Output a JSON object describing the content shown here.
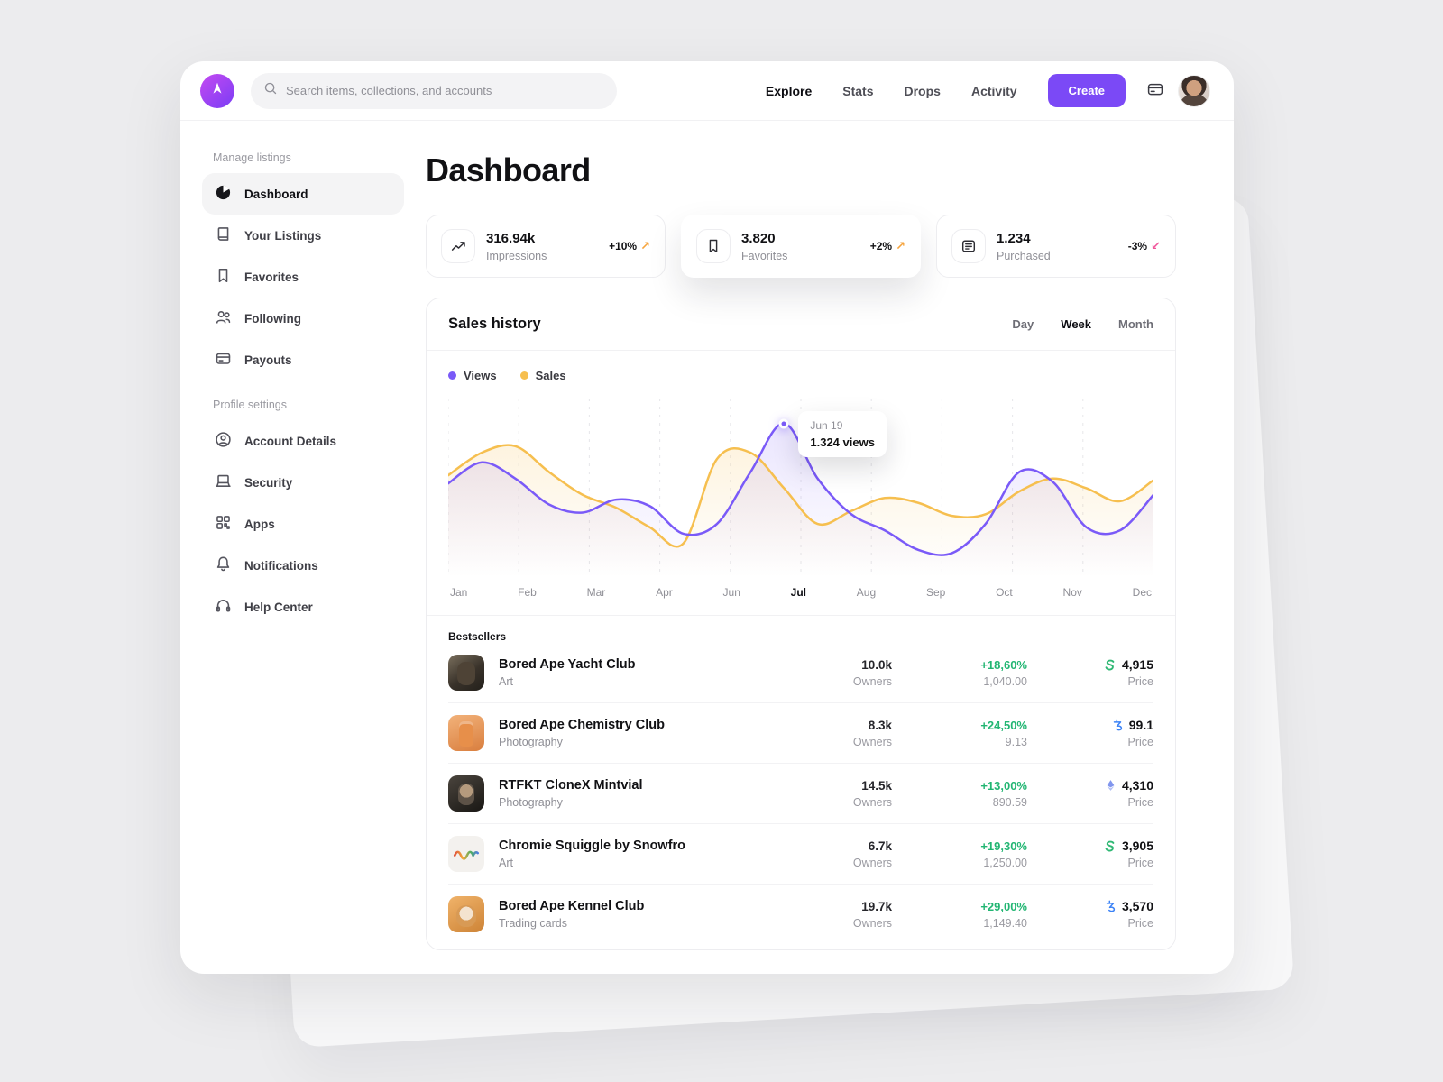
{
  "colors": {
    "accent": "#7b49f6",
    "views_line": "#7a5af8",
    "sales_line": "#f6bf4f",
    "positive": "#23b673",
    "negative_arrow": "#f0569b",
    "up_arrow": "#f6a43d"
  },
  "topbar": {
    "search_placeholder": "Search items, collections, and accounts",
    "nav": [
      {
        "label": "Explore"
      },
      {
        "label": "Stats"
      },
      {
        "label": "Drops"
      },
      {
        "label": "Activity"
      }
    ],
    "create_label": "Create"
  },
  "sidebar": {
    "sections": [
      {
        "label": "Manage listings",
        "items": [
          {
            "label": "Dashboard"
          },
          {
            "label": "Your Listings"
          },
          {
            "label": "Favorites"
          },
          {
            "label": "Following"
          },
          {
            "label": "Payouts"
          }
        ]
      },
      {
        "label": "Profile settings",
        "items": [
          {
            "label": "Account Details"
          },
          {
            "label": "Security"
          },
          {
            "label": "Apps"
          },
          {
            "label": "Notifications"
          },
          {
            "label": "Help Center"
          }
        ]
      }
    ]
  },
  "page_title": "Dashboard",
  "stats": [
    {
      "value": "316.94k",
      "label": "Impressions",
      "change": "+10%",
      "direction": "up"
    },
    {
      "value": "3.820",
      "label": "Favorites",
      "change": "+2%",
      "direction": "up"
    },
    {
      "value": "1.234",
      "label": "Purchased",
      "change": "-3%",
      "direction": "down"
    }
  ],
  "sales_panel": {
    "title": "Sales history",
    "tabs": [
      {
        "label": "Day"
      },
      {
        "label": "Week"
      },
      {
        "label": "Month"
      }
    ],
    "active_tab": "Week",
    "legend": [
      {
        "label": "Views"
      },
      {
        "label": "Sales"
      }
    ],
    "tooltip": {
      "date": "Jun 19",
      "value": "1.324 views"
    }
  },
  "chart_data": {
    "type": "line",
    "title": "Sales history",
    "categories": [
      "Jan",
      "Feb",
      "Mar",
      "Apr",
      "Jun",
      "Jul",
      "Aug",
      "Sep",
      "Oct",
      "Nov",
      "Dec"
    ],
    "active_category": "Jul",
    "ylim": [
      0,
      100
    ],
    "grid": "vertical-dashed",
    "legend_position": "top-left",
    "annotation": {
      "label": "Jun 19",
      "text": "1.324 views",
      "series": "Views"
    },
    "series": [
      {
        "name": "Views",
        "color": "#7a5af8",
        "values": [
          55,
          68,
          58,
          42,
          37,
          45,
          41,
          24,
          30,
          62,
          92,
          58,
          36,
          26,
          14,
          12,
          30,
          62,
          56,
          28,
          26,
          48
        ]
      },
      {
        "name": "Sales",
        "color": "#f6bf4f",
        "values": [
          60,
          74,
          78,
          62,
          48,
          40,
          28,
          18,
          70,
          74,
          52,
          30,
          38,
          46,
          43,
          35,
          36,
          50,
          58,
          52,
          44,
          57
        ]
      }
    ]
  },
  "bestsellers": {
    "label": "Bestsellers",
    "owners_label": "Owners",
    "price_label": "Price",
    "rows": [
      {
        "name": "Bored Ape Yacht Club",
        "category": "Art",
        "owners": "10.0k",
        "change": "+18,60%",
        "volume": "1,040.00",
        "price": "4,915",
        "token": "tether"
      },
      {
        "name": "Bored Ape Chemistry Club",
        "category": "Photography",
        "owners": "8.3k",
        "change": "+24,50%",
        "volume": "9.13",
        "price": "99.1",
        "token": "tezos"
      },
      {
        "name": "RTFKT CloneX Mintvial",
        "category": "Photography",
        "owners": "14.5k",
        "change": "+13,00%",
        "volume": "890.59",
        "price": "4,310",
        "token": "ethereum"
      },
      {
        "name": "Chromie Squiggle by Snowfro",
        "category": "Art",
        "owners": "6.7k",
        "change": "+19,30%",
        "volume": "1,250.00",
        "price": "3,905",
        "token": "tether"
      },
      {
        "name": "Bored Ape Kennel Club",
        "category": "Trading cards",
        "owners": "19.7k",
        "change": "+29,00%",
        "volume": "1,149.40",
        "price": "3,570",
        "token": "tezos"
      }
    ]
  }
}
